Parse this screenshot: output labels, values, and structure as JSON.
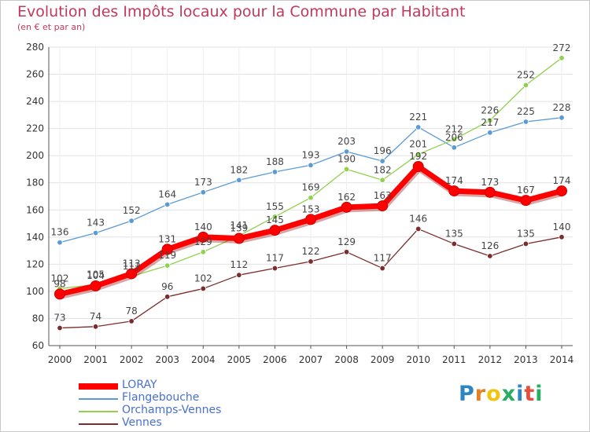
{
  "title": "Evolution des Impôts locaux pour la Commune par Habitant",
  "subtitle": "(en € et par an)",
  "brand": {
    "text": "Proxiti",
    "letter_colors": [
      "#2e86c1",
      "#e67e22",
      "#f1c40f",
      "#27ae60",
      "#2e86c1",
      "#e74c3c",
      "#27ae60"
    ]
  },
  "chart_data": {
    "type": "line",
    "x": [
      2000,
      2001,
      2002,
      2003,
      2004,
      2005,
      2006,
      2007,
      2008,
      2009,
      2010,
      2011,
      2012,
      2013,
      2014
    ],
    "ylim": [
      60,
      280
    ],
    "yticks": [
      60,
      80,
      100,
      120,
      140,
      160,
      180,
      200,
      220,
      240,
      260,
      280
    ],
    "grid": true,
    "legend_position": "bottom-left",
    "series": [
      {
        "name": "LORAY",
        "color": "#ff0000",
        "values": [
          98,
          104,
          113,
          131,
          140,
          139,
          145,
          153,
          162,
          163,
          192,
          174,
          173,
          167,
          174
        ]
      },
      {
        "name": "Flangebouche",
        "color": "#5b9bd5",
        "values": [
          136,
          143,
          152,
          164,
          173,
          182,
          188,
          193,
          203,
          196,
          221,
          206,
          217,
          225,
          228
        ]
      },
      {
        "name": "Orchamps-Vennes",
        "color": "#92d050",
        "values": [
          102,
          105,
          111,
          119,
          129,
          141,
          155,
          169,
          190,
          182,
          201,
          212,
          226,
          252,
          272
        ]
      },
      {
        "name": "Vennes",
        "color": "#7b2c2c",
        "values": [
          73,
          74,
          78,
          96,
          102,
          112,
          117,
          122,
          129,
          117,
          146,
          135,
          126,
          135,
          140
        ]
      }
    ]
  }
}
